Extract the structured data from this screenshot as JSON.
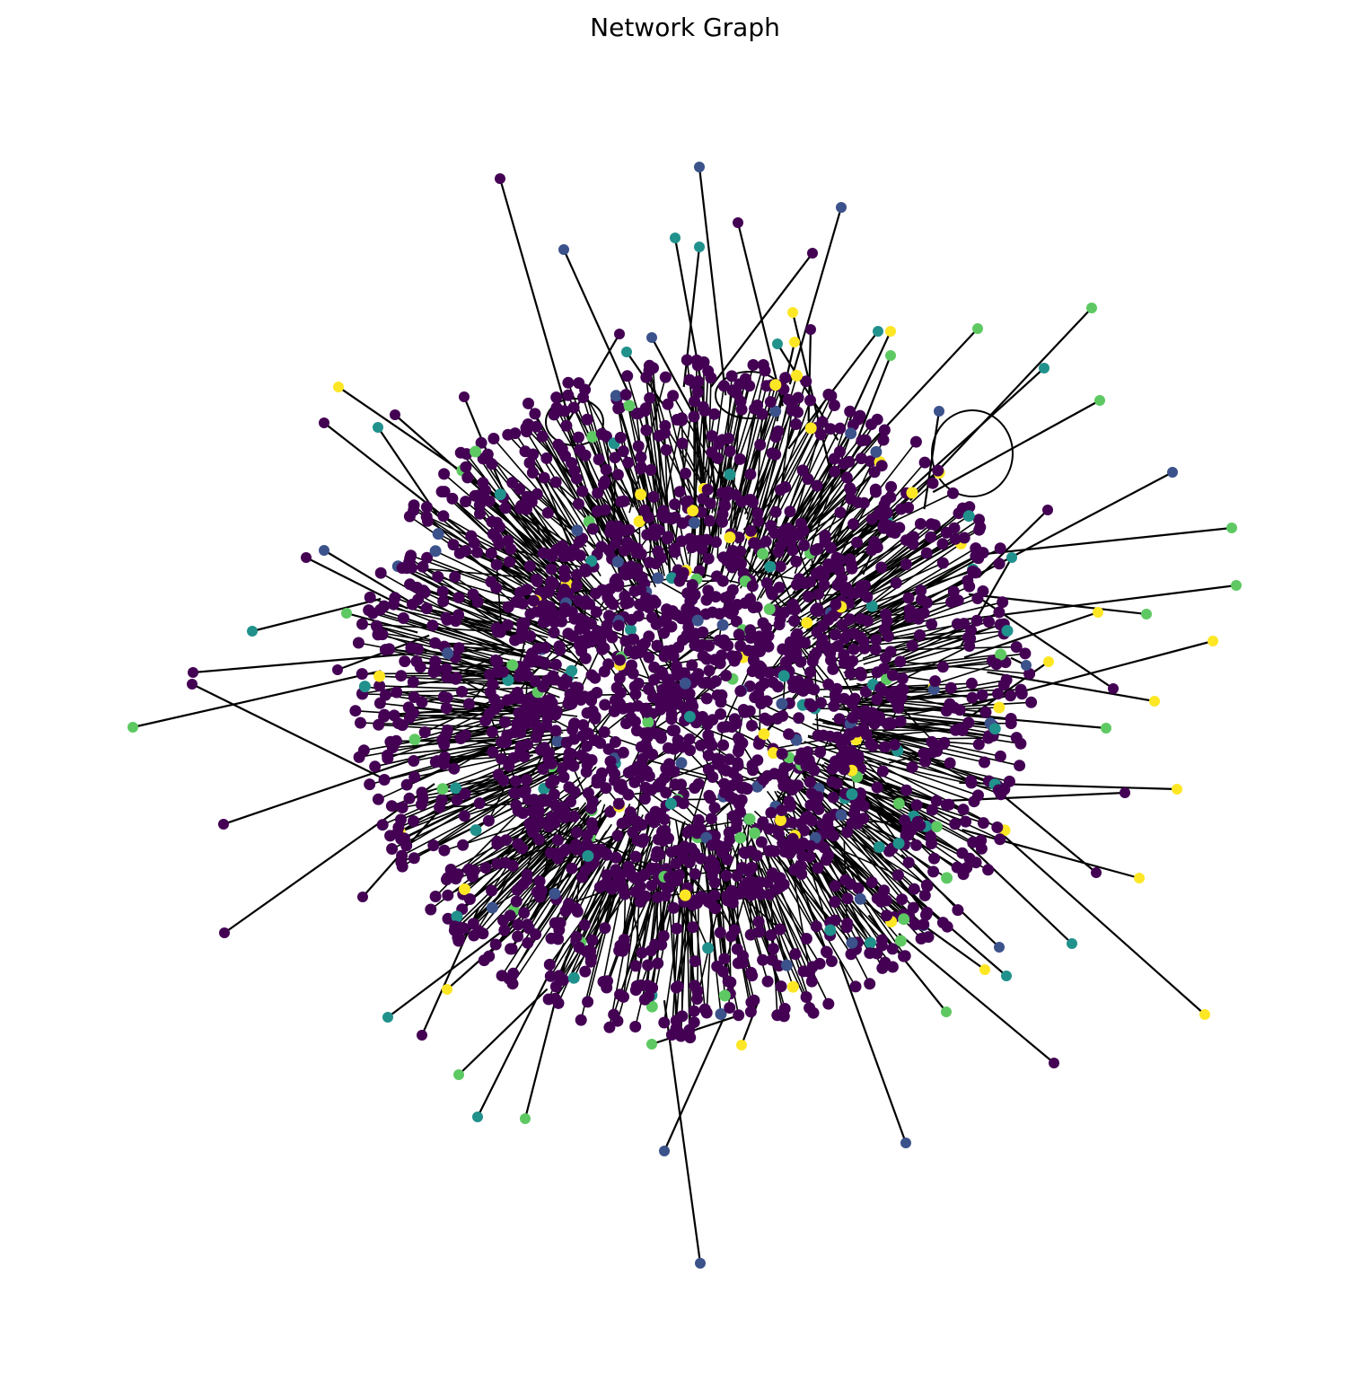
{
  "title": "Network Graph",
  "graph": {
    "edge_color": "#000000",
    "colormap": [
      "#440154",
      "#3b528b",
      "#21918c",
      "#5ec962",
      "#fde725"
    ],
    "background": "#ffffff"
  }
}
